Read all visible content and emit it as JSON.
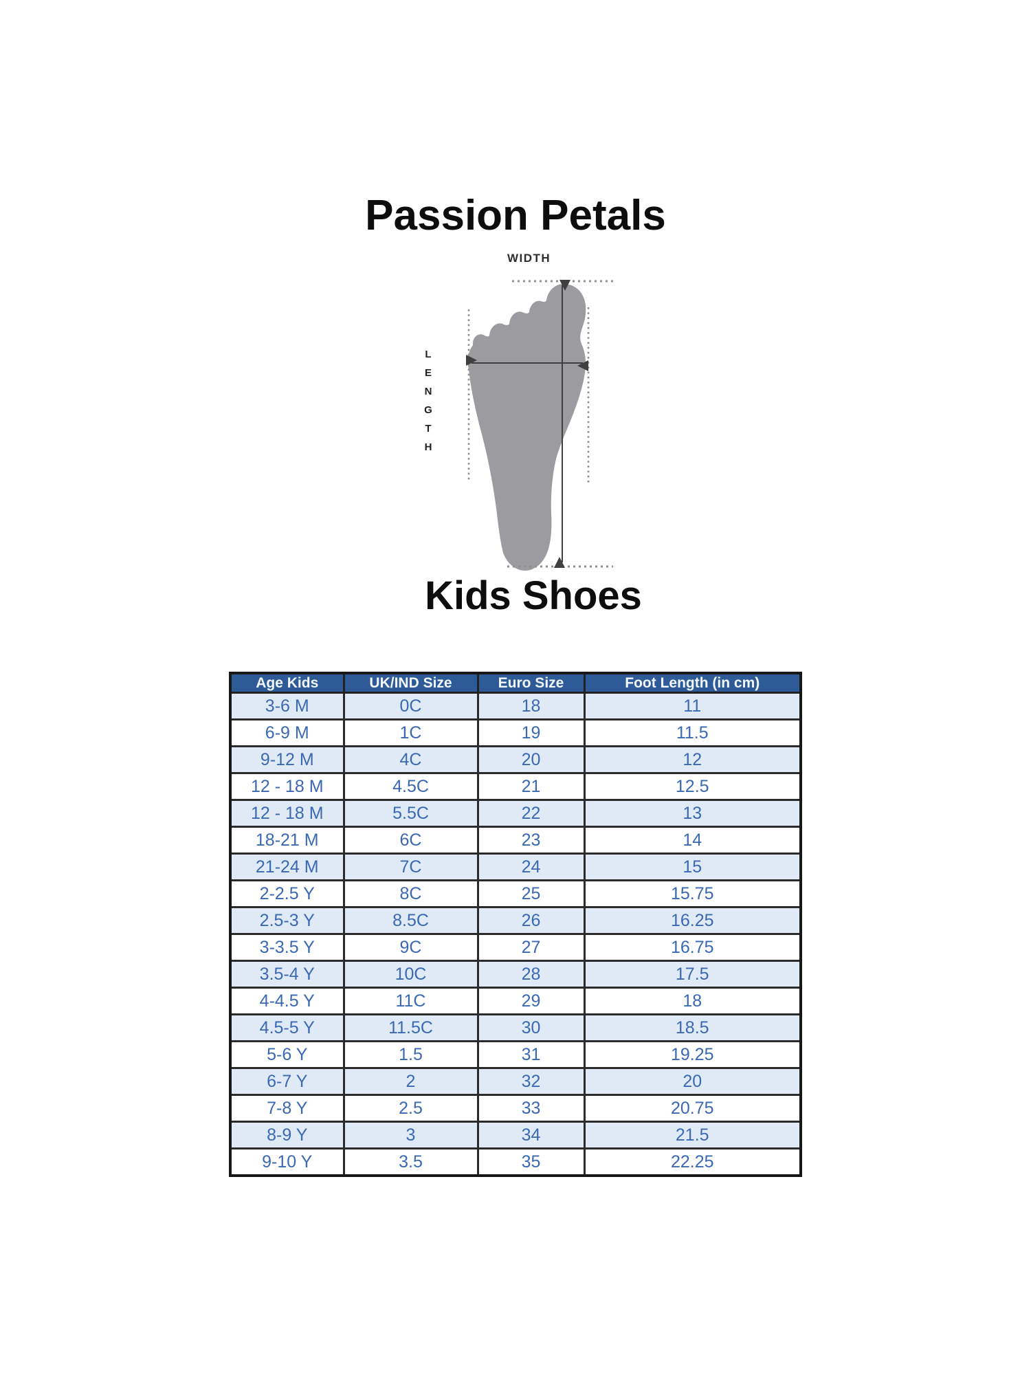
{
  "title": "Passion Petals",
  "section_heading": "Kids Shoes",
  "diagram": {
    "width_label": "WIDTH",
    "length_label": "LENGTH",
    "colors": {
      "foot": "#9b9ba0",
      "dotted": "#8f8f8f",
      "arrow": "#3f3f3f"
    }
  },
  "table": {
    "headers": [
      "Age Kids",
      "UK/IND Size",
      "Euro Size",
      "Foot Length (in cm)"
    ],
    "rows": [
      [
        "3-6 M",
        "0C",
        "18",
        "11"
      ],
      [
        "6-9 M",
        "1C",
        "19",
        "11.5"
      ],
      [
        "9-12 M",
        "4C",
        "20",
        "12"
      ],
      [
        "12 - 18 M",
        "4.5C",
        "21",
        "12.5"
      ],
      [
        "12 - 18 M",
        "5.5C",
        "22",
        "13"
      ],
      [
        "18-21 M",
        "6C",
        "23",
        "14"
      ],
      [
        "21-24 M",
        "7C",
        "24",
        "15"
      ],
      [
        "2-2.5 Y",
        "8C",
        "25",
        "15.75"
      ],
      [
        "2.5-3 Y",
        "8.5C",
        "26",
        "16.25"
      ],
      [
        "3-3.5 Y",
        "9C",
        "27",
        "16.75"
      ],
      [
        "3.5-4 Y",
        "10C",
        "28",
        "17.5"
      ],
      [
        "4-4.5 Y",
        "11C",
        "29",
        "18"
      ],
      [
        "4.5-5 Y",
        "11.5C",
        "30",
        "18.5"
      ],
      [
        "5-6 Y",
        "1.5",
        "31",
        "19.25"
      ],
      [
        "6-7 Y",
        "2",
        "32",
        "20"
      ],
      [
        "7-8 Y",
        "2.5",
        "33",
        "20.75"
      ],
      [
        "8-9 Y",
        "3",
        "34",
        "21.5"
      ],
      [
        "9-10 Y",
        "3.5",
        "35",
        "22.25"
      ]
    ],
    "colors": {
      "header_bg": "#2e5b98",
      "header_text": "#f4f8fd",
      "row_bg": "#ffffff",
      "row_alt_bg": "#dfeaf6",
      "cell_text": "#3a68b2",
      "border": "#2b2b2b"
    }
  }
}
